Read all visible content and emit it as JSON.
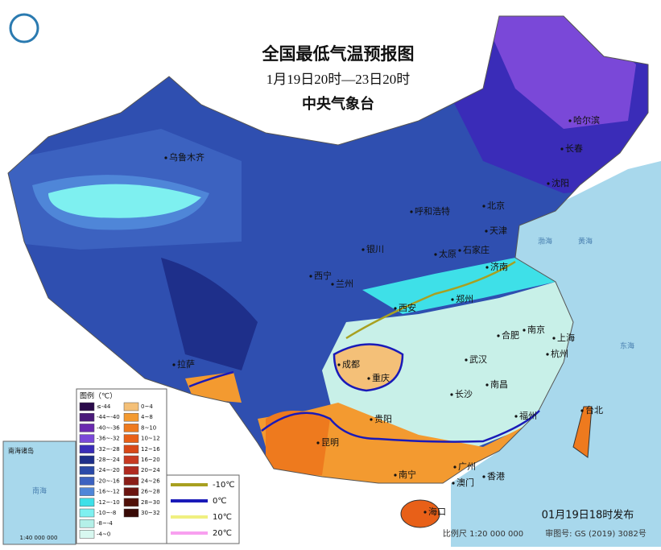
{
  "header": {
    "title": "全国最低气温预报图",
    "subtitle": "1月19日20时—23日20时",
    "agency": "中央气象台"
  },
  "legend": {
    "title": "图例（℃）",
    "items": [
      {
        "label": "≤-44",
        "color": "#2a0a4a"
      },
      {
        "label": "-44~-40",
        "color": "#4a1a7a"
      },
      {
        "label": "-40~-36",
        "color": "#6a2ab0"
      },
      {
        "label": "-36~-32",
        "color": "#7a48d8"
      },
      {
        "label": "-32~-28",
        "color": "#3a2cb8"
      },
      {
        "label": "-28~-24",
        "color": "#1e2f8a"
      },
      {
        "label": "-24~-20",
        "color": "#2b4aa8"
      },
      {
        "label": "-20~-16",
        "color": "#3c62c0"
      },
      {
        "label": "-16~-12",
        "color": "#4f86d8"
      },
      {
        "label": "-12~-10",
        "color": "#3ee0e8"
      },
      {
        "label": "-10~-8",
        "color": "#7ef0f0"
      },
      {
        "label": "-8~-4",
        "color": "#b4f0e8"
      },
      {
        "label": "-4~0",
        "color": "#d8f8f0"
      },
      {
        "label": "0~4",
        "color": "#f4c078"
      },
      {
        "label": "4~8",
        "color": "#f39a30"
      },
      {
        "label": "8~10",
        "color": "#ee7a1e"
      },
      {
        "label": "10~12",
        "color": "#e86018"
      },
      {
        "label": "12~16",
        "color": "#d84818"
      },
      {
        "label": "16~20",
        "color": "#c83a22"
      },
      {
        "label": "20~24",
        "color": "#b02a20"
      },
      {
        "label": "24~26",
        "color": "#8a1e18"
      },
      {
        "label": "26~28",
        "color": "#6a1410"
      },
      {
        "label": "28~30",
        "color": "#501008"
      },
      {
        "label": "30~32",
        "color": "#380a06"
      }
    ],
    "lines": [
      {
        "label": "-10℃",
        "color": "#a8a020"
      },
      {
        "label": "0℃",
        "color": "#1a1ab8"
      },
      {
        "label": "10℃",
        "color": "#f0f080"
      },
      {
        "label": "20℃",
        "color": "#f8a0f0"
      }
    ]
  },
  "cities": [
    "乌鲁木齐",
    "哈尔滨",
    "长春",
    "沈阳",
    "北京",
    "天津",
    "呼和浩特",
    "石家庄",
    "太原",
    "济南",
    "银川",
    "西宁",
    "兰州",
    "西安",
    "郑州",
    "合肥",
    "南京",
    "上海",
    "杭州",
    "武汉",
    "成都",
    "重庆",
    "拉萨",
    "贵阳",
    "长沙",
    "南昌",
    "福州",
    "台北",
    "昆明",
    "南宁",
    "广州",
    "澳门",
    "香港",
    "海口"
  ],
  "seas": [
    "渤海",
    "黄海",
    "东海",
    "南海"
  ],
  "inset": {
    "title": "南海诸岛",
    "scale": "1:40 000 000"
  },
  "footer": {
    "issued": "01月19日18时发布",
    "scale": "比例尺 1:20 000 000",
    "approval": "审图号: GS (2019) 3082号"
  }
}
